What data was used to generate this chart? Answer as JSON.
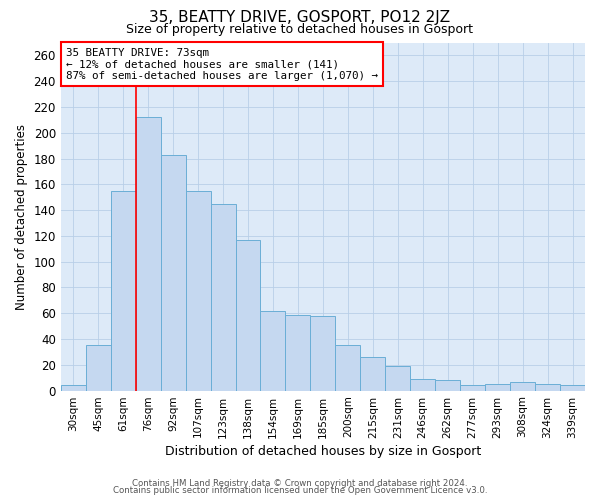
{
  "title": "35, BEATTY DRIVE, GOSPORT, PO12 2JZ",
  "subtitle": "Size of property relative to detached houses in Gosport",
  "xlabel": "Distribution of detached houses by size in Gosport",
  "ylabel": "Number of detached properties",
  "categories": [
    "30sqm",
    "45sqm",
    "61sqm",
    "76sqm",
    "92sqm",
    "107sqm",
    "123sqm",
    "138sqm",
    "154sqm",
    "169sqm",
    "185sqm",
    "200sqm",
    "215sqm",
    "231sqm",
    "246sqm",
    "262sqm",
    "277sqm",
    "293sqm",
    "308sqm",
    "324sqm",
    "339sqm"
  ],
  "values": [
    4,
    35,
    155,
    212,
    183,
    155,
    145,
    117,
    62,
    59,
    58,
    35,
    26,
    19,
    9,
    8,
    4,
    5,
    7,
    5,
    4
  ],
  "bar_color": "#c5d8f0",
  "bar_edge_color": "#6aaed6",
  "grid_color": "#b8cfe8",
  "background_color": "#ddeaf8",
  "annotation_line1": "35 BEATTY DRIVE: 73sqm",
  "annotation_line2": "← 12% of detached houses are smaller (141)",
  "annotation_line3": "87% of semi-detached houses are larger (1,070) →",
  "red_line_index": 3,
  "ylim": [
    0,
    270
  ],
  "yticks": [
    0,
    20,
    40,
    60,
    80,
    100,
    120,
    140,
    160,
    180,
    200,
    220,
    240,
    260
  ],
  "footer_line1": "Contains HM Land Registry data © Crown copyright and database right 2024.",
  "footer_line2": "Contains public sector information licensed under the Open Government Licence v3.0."
}
